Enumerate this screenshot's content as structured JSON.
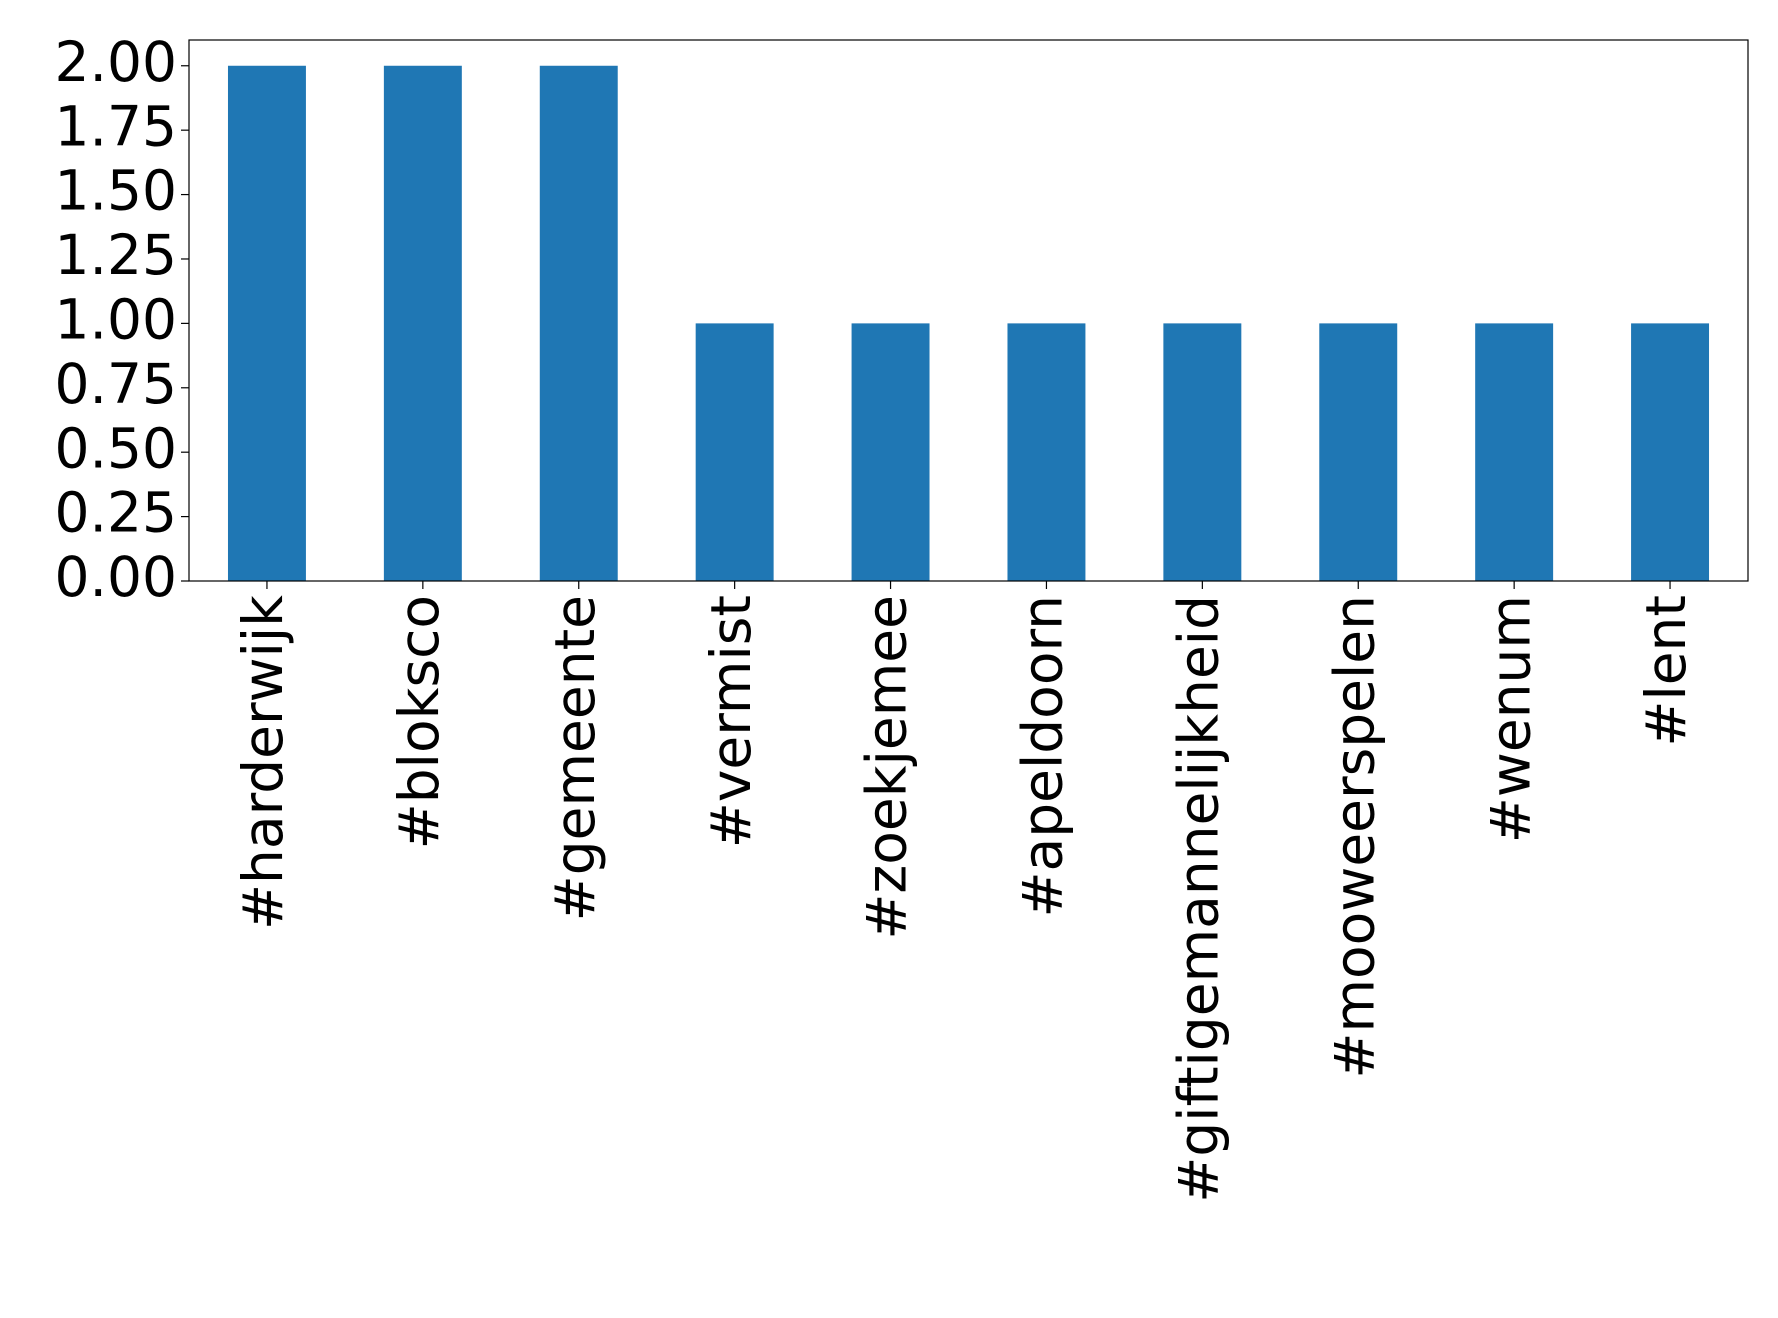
{
  "chart_data": {
    "type": "bar",
    "categories": [
      "#harderwijk",
      "#bloksco",
      "#gemeente",
      "#vermist",
      "#zoekjemee",
      "#apeldoorn",
      "#giftigemannelijkheid",
      "#mooweerspelen",
      "#wenum",
      "#lent"
    ],
    "values": [
      2,
      2,
      2,
      1,
      1,
      1,
      1,
      1,
      1,
      1
    ],
    "color": "#1f77b4",
    "ylim": [
      0,
      2.1
    ],
    "yticks": [
      {
        "value": 0,
        "label": "0.00"
      },
      {
        "value": 0.25,
        "label": "0.25"
      },
      {
        "value": 0.5,
        "label": "0.50"
      },
      {
        "value": 0.75,
        "label": "0.75"
      },
      {
        "value": 1,
        "label": "1.00"
      },
      {
        "value": 1.25,
        "label": "1.25"
      },
      {
        "value": 1.5,
        "label": "1.50"
      },
      {
        "value": 1.75,
        "label": "1.75"
      },
      {
        "value": 2,
        "label": "2.00"
      }
    ],
    "grid": false
  }
}
